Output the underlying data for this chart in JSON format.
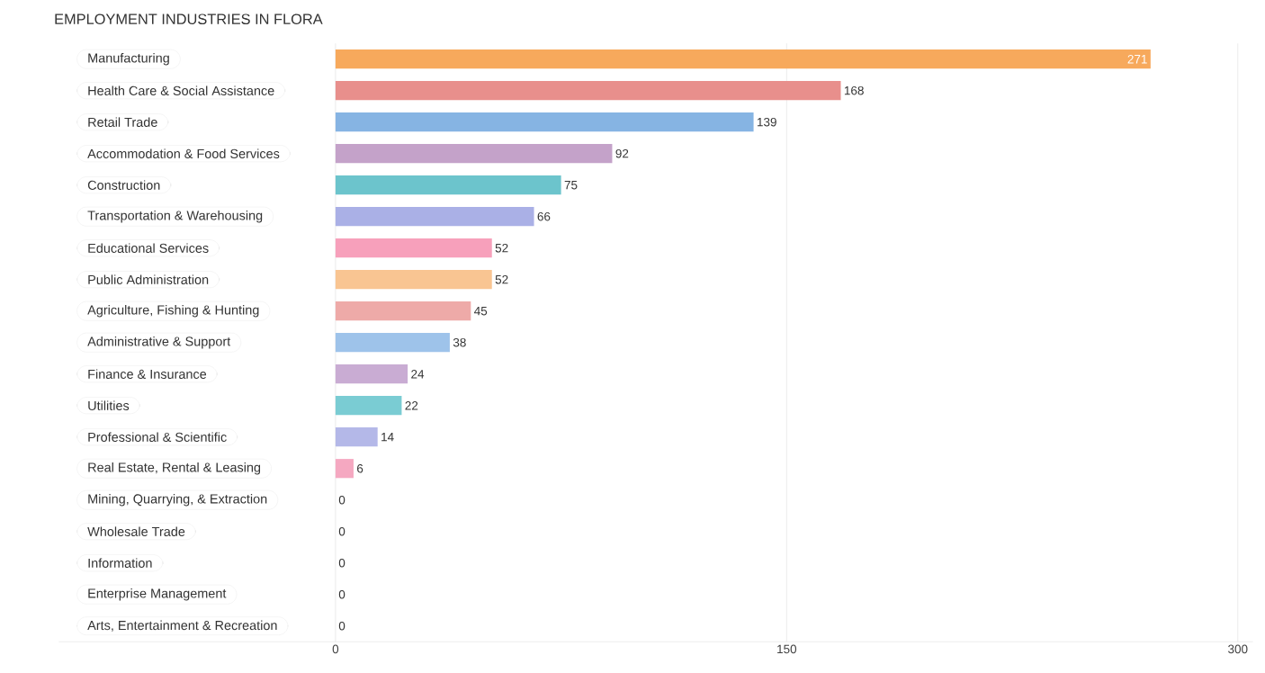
{
  "chart_data": {
    "type": "bar",
    "orientation": "horizontal",
    "title": "EMPLOYMENT INDUSTRIES IN FLORA",
    "categories": [
      "Manufacturing",
      "Health Care & Social Assistance",
      "Retail Trade",
      "Accommodation & Food Services",
      "Construction",
      "Transportation & Warehousing",
      "Educational Services",
      "Public Administration",
      "Agriculture, Fishing & Hunting",
      "Administrative & Support",
      "Finance & Insurance",
      "Utilities",
      "Professional & Scientific",
      "Real Estate, Rental & Leasing",
      "Mining, Quarrying, & Extraction",
      "Wholesale Trade",
      "Information",
      "Enterprise Management",
      "Arts, Entertainment & Recreation"
    ],
    "values": [
      271,
      168,
      139,
      92,
      75,
      66,
      52,
      52,
      45,
      38,
      24,
      22,
      14,
      6,
      0,
      0,
      0,
      0,
      0
    ],
    "colors": [
      "#f7a95c",
      "#e88f8c",
      "#86b4e3",
      "#c4a2c9",
      "#6cc4cc",
      "#aab0e6",
      "#f7a0bb",
      "#f9c592",
      "#eeaaa8",
      "#9ec3ea",
      "#c9acd3",
      "#7accd3",
      "#b4b8e8",
      "#f5a8c1",
      "#fbcb9b",
      "#f2b3b1",
      "#a9c8ee",
      "#ceb3d8",
      "#7fcbd2"
    ],
    "xlim": [
      -92,
      305
    ],
    "xticks": [
      0,
      150,
      300
    ],
    "grid": "x",
    "data_labels": true
  }
}
